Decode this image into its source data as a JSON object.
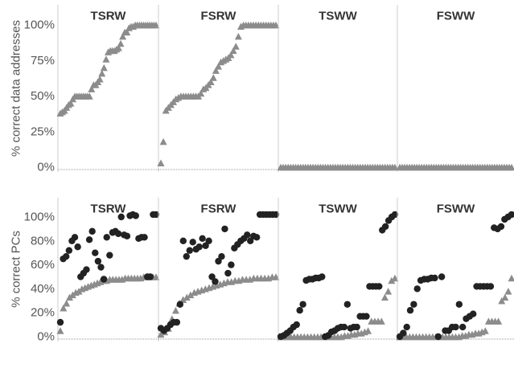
{
  "colors": {
    "triangle_series": "#8c8c8c",
    "circle_series": "#222222",
    "panel_border": "#cccccc",
    "baseline": "#999999"
  },
  "chart_data": [
    {
      "type": "scatter",
      "ylabel": "% correct data addresses",
      "yticks": [
        "0%",
        "25%",
        "50%",
        "75%",
        "100%"
      ],
      "ylim": [
        -3,
        104
      ],
      "panels": [
        {
          "title": "TSRW",
          "series": [
            {
              "marker": "triangle",
              "color": "#8c8c8c",
              "y": [
                38,
                39,
                40,
                42,
                44,
                45,
                48,
                50,
                50,
                50,
                50,
                50,
                50,
                50,
                50,
                55,
                58,
                58,
                60,
                62,
                66,
                70,
                76,
                81,
                82,
                82,
                82,
                83,
                84,
                87,
                92,
                95,
                95,
                98,
                99,
                99,
                100,
                100,
                100,
                100,
                100,
                100,
                100,
                100,
                100,
                100,
                100
              ]
            }
          ]
        },
        {
          "title": "FSRW",
          "series": [
            {
              "marker": "triangle",
              "color": "#8c8c8c",
              "y": [
                3,
                18,
                40,
                42,
                44,
                46,
                48,
                49,
                50,
                50,
                50,
                50,
                50,
                50,
                50,
                50,
                52,
                55,
                56,
                58,
                60,
                63,
                68,
                71,
                74,
                75,
                76,
                77,
                79,
                82,
                85,
                92,
                99,
                100,
                100,
                100,
                100,
                100,
                100,
                100,
                100,
                100,
                100,
                100,
                100,
                100,
                100
              ]
            }
          ]
        },
        {
          "title": "TSWW",
          "series": [
            {
              "marker": "triangle",
              "color": "#8c8c8c",
              "y": [
                0,
                0,
                0,
                0,
                0,
                0,
                0,
                0,
                0,
                0,
                0,
                0,
                0,
                0,
                0,
                0,
                0,
                0,
                0,
                0,
                0,
                0,
                0,
                0,
                0,
                0,
                0,
                0,
                0,
                0,
                0,
                0,
                0,
                0,
                0,
                0,
                0,
                0,
                0,
                0,
                0,
                0,
                0,
                0,
                0,
                0,
                0
              ]
            }
          ]
        },
        {
          "title": "FSWW",
          "series": [
            {
              "marker": "triangle",
              "color": "#8c8c8c",
              "y": [
                0,
                0,
                0,
                0,
                0,
                0,
                0,
                0,
                0,
                0,
                0,
                0,
                0,
                0,
                0,
                0,
                0,
                0,
                0,
                0,
                0,
                0,
                0,
                0,
                0,
                0,
                0,
                0,
                0,
                0,
                0,
                0,
                0,
                0,
                0,
                0,
                0,
                0,
                0,
                0,
                0,
                0,
                0,
                0,
                0,
                0,
                0
              ]
            }
          ]
        }
      ]
    },
    {
      "type": "scatter",
      "ylabel": "% correct PCs",
      "yticks": [
        "0%",
        "20%",
        "40%",
        "60%",
        "80%",
        "100%"
      ],
      "ylim": [
        -3,
        103
      ],
      "panels": [
        {
          "title": "TSRW",
          "series": [
            {
              "marker": "triangle",
              "color": "#8c8c8c",
              "y": [
                5,
                24,
                28,
                33,
                35,
                37,
                38,
                40,
                41,
                42,
                43,
                44,
                45,
                46,
                47,
                47,
                48,
                48,
                48,
                48,
                48,
                49,
                49,
                49,
                49,
                49,
                49,
                50,
                50,
                50,
                50,
                50
              ]
            },
            {
              "marker": "circle",
              "color": "#222222",
              "y": [
                12,
                65,
                67,
                72,
                80,
                83,
                75,
                50,
                53,
                56,
                81,
                88,
                70,
                63,
                58,
                48,
                83,
                68,
                87,
                88,
                86,
                100,
                85,
                84,
                101,
                102,
                101,
                82,
                83,
                83,
                50,
                50,
                102,
                102
              ]
            }
          ]
        },
        {
          "title": "FSRW",
          "series": [
            {
              "marker": "triangle",
              "color": "#8c8c8c",
              "y": [
                2,
                4,
                7,
                15,
                22,
                28,
                31,
                33,
                35,
                37,
                38,
                39,
                40,
                41,
                42,
                43,
                44,
                45,
                46,
                46,
                47,
                47,
                48,
                48,
                48,
                49,
                49,
                49,
                49,
                49,
                50,
                50
              ]
            },
            {
              "marker": "circle",
              "color": "#222222",
              "y": [
                7,
                5,
                7,
                10,
                12,
                12,
                27,
                80,
                67,
                72,
                79,
                73,
                75,
                82,
                76,
                80,
                50,
                46,
                63,
                67,
                90,
                53,
                60,
                74,
                77,
                80,
                82,
                85,
                80,
                84,
                83,
                102,
                102,
                102,
                102,
                102,
                102
              ]
            }
          ]
        },
        {
          "title": "TSWW",
          "series": [
            {
              "marker": "triangle",
              "color": "#8c8c8c",
              "y": [
                0,
                0,
                0,
                0,
                0,
                0,
                0,
                0,
                0,
                0,
                0,
                0,
                0,
                0,
                0,
                0,
                0,
                0,
                0,
                1,
                1,
                2,
                2,
                3,
                3,
                4,
                5,
                13,
                13,
                13,
                13,
                33,
                38,
                47,
                49
              ]
            },
            {
              "marker": "circle",
              "color": "#222222",
              "y": [
                0,
                1,
                3,
                5,
                8,
                10,
                22,
                27,
                47,
                48,
                48,
                49,
                49,
                50,
                0,
                1,
                4,
                5,
                7,
                8,
                8,
                27,
                7,
                8,
                8,
                17,
                17,
                17,
                42,
                42,
                42,
                42,
                89,
                92,
                97,
                100,
                102
              ]
            }
          ]
        },
        {
          "title": "FSWW",
          "series": [
            {
              "marker": "triangle",
              "color": "#8c8c8c",
              "y": [
                0,
                0,
                0,
                0,
                0,
                0,
                0,
                0,
                0,
                0,
                0,
                0,
                0,
                0,
                0,
                0,
                0,
                0,
                0,
                1,
                1,
                2,
                2,
                3,
                3,
                4,
                5,
                13,
                13,
                13,
                13,
                30,
                33,
                38,
                49
              ]
            },
            {
              "marker": "circle",
              "color": "#222222",
              "y": [
                0,
                3,
                8,
                22,
                27,
                40,
                47,
                48,
                48,
                49,
                49,
                0,
                50,
                5,
                5,
                8,
                8,
                27,
                8,
                15,
                17,
                19,
                42,
                42,
                42,
                42,
                42,
                91,
                90,
                92,
                98,
                100,
                102
              ]
            }
          ]
        }
      ]
    }
  ]
}
